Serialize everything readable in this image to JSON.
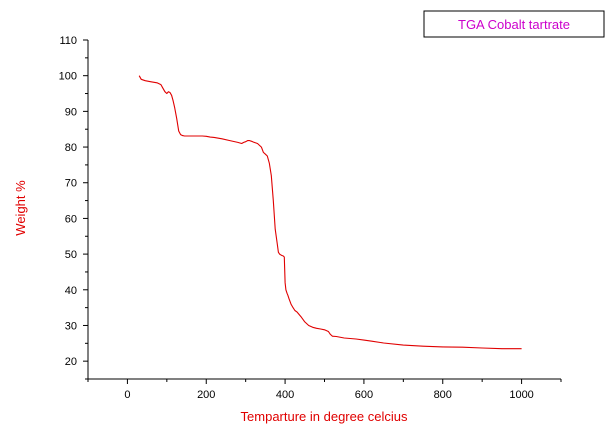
{
  "chart_data": {
    "type": "line",
    "title": "",
    "xlabel": "Temparture in degree celcius",
    "ylabel": "Weight %",
    "xlim": [
      -100,
      1100
    ],
    "ylim": [
      15,
      110
    ],
    "xticks": [
      0,
      200,
      400,
      600,
      800,
      1000
    ],
    "yticks": [
      20,
      30,
      40,
      50,
      60,
      70,
      80,
      90,
      100,
      110
    ],
    "grid": false,
    "legend_position": "top-right",
    "colors": {
      "line": "#e00000",
      "axis_label": "#e00000",
      "legend_text": "#cc00cc",
      "axes": "#000000"
    },
    "series": [
      {
        "name": "TGA Cobalt tartrate",
        "x": [
          30,
          35,
          45,
          60,
          75,
          85,
          90,
          95,
          100,
          104,
          108,
          112,
          116,
          120,
          125,
          130,
          135,
          140,
          145,
          150,
          160,
          175,
          190,
          200,
          210,
          220,
          240,
          260,
          280,
          290,
          295,
          300,
          305,
          310,
          315,
          320,
          330,
          340,
          345,
          350,
          355,
          360,
          365,
          370,
          375,
          380,
          383,
          386,
          389,
          392,
          395,
          398,
          400,
          402,
          405,
          407,
          410,
          415,
          420,
          425,
          430,
          440,
          450,
          460,
          470,
          480,
          490,
          500,
          510,
          515,
          520,
          530,
          550,
          580,
          600,
          620,
          650,
          700,
          750,
          800,
          850,
          900,
          950,
          1000
        ],
        "y": [
          100.0,
          99.0,
          98.6,
          98.3,
          98.0,
          97.5,
          96.5,
          95.5,
          95.0,
          95.5,
          95.3,
          94.5,
          93.0,
          91.0,
          88.0,
          84.5,
          83.5,
          83.2,
          83.1,
          83.1,
          83.1,
          83.1,
          83.1,
          83.0,
          82.8,
          82.7,
          82.3,
          81.8,
          81.3,
          81.0,
          81.3,
          81.5,
          81.8,
          81.8,
          81.6,
          81.4,
          81.0,
          80.0,
          78.5,
          78.0,
          77.5,
          75.5,
          72.0,
          65.0,
          57.0,
          53.0,
          50.5,
          50.0,
          49.8,
          49.6,
          49.5,
          49.2,
          42.0,
          40.0,
          39.0,
          38.5,
          37.5,
          36.0,
          35.0,
          34.2,
          33.8,
          32.5,
          31.0,
          30.0,
          29.5,
          29.2,
          29.0,
          28.8,
          28.3,
          27.5,
          27.0,
          26.9,
          26.5,
          26.2,
          25.9,
          25.6,
          25.1,
          24.5,
          24.2,
          24.0,
          23.9,
          23.7,
          23.5,
          23.5
        ]
      }
    ]
  }
}
